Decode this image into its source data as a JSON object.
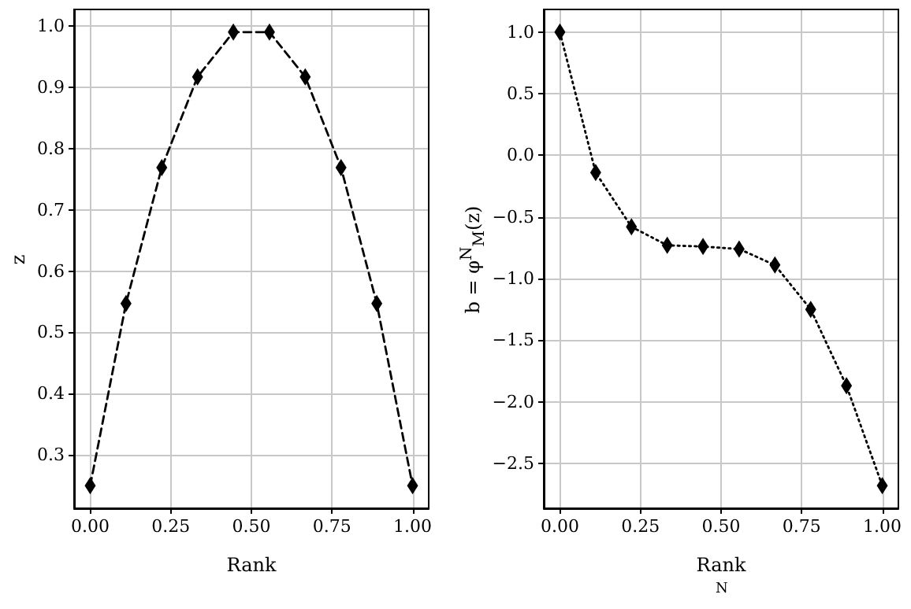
{
  "chart_data": [
    {
      "type": "line",
      "xlabel": "Rank",
      "ylabel": "z",
      "x": [
        0,
        0.111,
        0.222,
        0.333,
        0.444,
        0.556,
        0.667,
        0.778,
        0.889,
        1
      ],
      "series": [
        {
          "color": "#000000",
          "values": [
            0.25,
            0.547,
            0.769,
            0.917,
            0.99,
            0.99,
            0.917,
            0.769,
            0.547,
            0.25
          ]
        }
      ],
      "xlim": [
        -0.05,
        1.05
      ],
      "ylim": [
        0.213,
        1.027
      ],
      "xticks": [
        {
          "value": 0,
          "label": "0.00"
        },
        {
          "value": 0.25,
          "label": "0.25"
        },
        {
          "value": 0.5,
          "label": "0.50"
        },
        {
          "value": 0.75,
          "label": "0.75"
        },
        {
          "value": 1,
          "label": "1.00"
        }
      ],
      "yticks": [
        {
          "value": 0.3,
          "label": "0.3"
        },
        {
          "value": 0.4,
          "label": "0.4"
        },
        {
          "value": 0.5,
          "label": "0.5"
        },
        {
          "value": 0.6,
          "label": "0.6"
        },
        {
          "value": 0.7,
          "label": "0.7"
        },
        {
          "value": 0.8,
          "label": "0.8"
        },
        {
          "value": 0.9,
          "label": "0.9"
        },
        {
          "value": 1,
          "label": "1.0"
        }
      ],
      "grid": true,
      "marker": "diamond",
      "line_style": "dashed"
    },
    {
      "type": "line",
      "xlabel": "Rank",
      "ylabel": "b = φ$^{N}$$_{M}$(z)",
      "x": [
        0,
        0.111,
        0.222,
        0.333,
        0.444,
        0.556,
        0.667,
        0.778,
        0.889,
        1
      ],
      "series": [
        {
          "color": "#000000",
          "values": [
            1.0,
            -0.14,
            -0.58,
            -0.73,
            -0.74,
            -0.76,
            -0.89,
            -1.25,
            -1.87,
            -2.68
          ]
        }
      ],
      "xlim": [
        -0.05,
        1.05
      ],
      "ylim": [
        -2.864,
        1.184
      ],
      "xticks": [
        {
          "value": 0,
          "label": "0.00"
        },
        {
          "value": 0.25,
          "label": "0.25"
        },
        {
          "value": 0.5,
          "label": "0.50"
        },
        {
          "value": 0.75,
          "label": "0.75"
        },
        {
          "value": 1,
          "label": "1.00"
        }
      ],
      "yticks": [
        {
          "value": -2.5,
          "label": "−2.5"
        },
        {
          "value": -2,
          "label": "−2.0"
        },
        {
          "value": -1.5,
          "label": "−1.5"
        },
        {
          "value": -1,
          "label": "−1.0"
        },
        {
          "value": -0.5,
          "label": "−0.5"
        },
        {
          "value": 0,
          "label": "0.0"
        },
        {
          "value": 0.5,
          "label": "0.5"
        },
        {
          "value": 1,
          "label": "1.0"
        }
      ],
      "grid": true,
      "marker": "diamond",
      "line_style": "dotted",
      "annotations": [
        "N"
      ]
    }
  ]
}
